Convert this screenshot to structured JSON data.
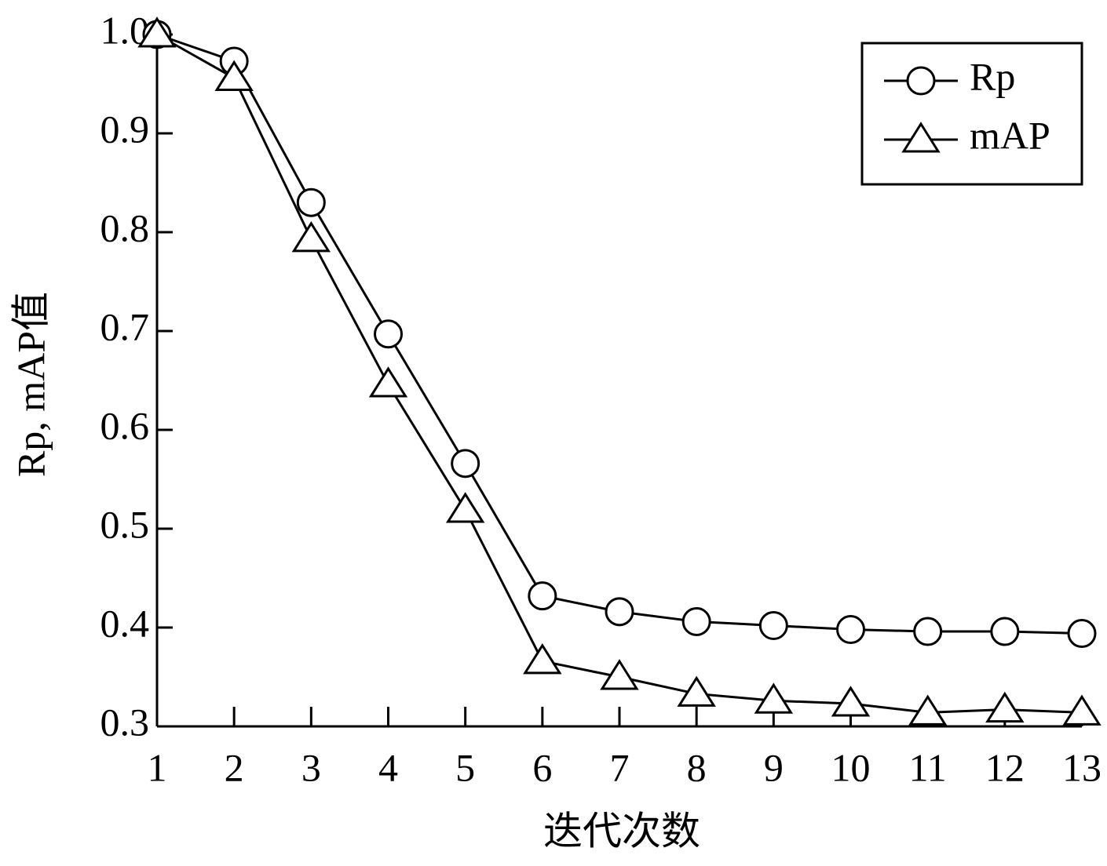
{
  "chart_data": {
    "type": "line",
    "xlabel": "迭代次数",
    "ylabel": "Rp, mAP值",
    "x": [
      1,
      2,
      3,
      4,
      5,
      6,
      7,
      8,
      9,
      10,
      11,
      12,
      13
    ],
    "series": [
      {
        "name": "Rp",
        "color": "#000000",
        "marker": "circle",
        "values": [
          1.0,
          0.973,
          0.83,
          0.697,
          0.566,
          0.432,
          0.416,
          0.406,
          0.402,
          0.398,
          0.396,
          0.396,
          0.394
        ]
      },
      {
        "name": "mAP",
        "color": "#000000",
        "marker": "triangle",
        "values": [
          1.0,
          0.956,
          0.793,
          0.646,
          0.519,
          0.366,
          0.35,
          0.333,
          0.326,
          0.323,
          0.314,
          0.317,
          0.314
        ]
      }
    ],
    "xlim": [
      1,
      13
    ],
    "xticks": [
      1,
      2,
      3,
      4,
      5,
      6,
      7,
      8,
      9,
      10,
      11,
      12,
      13
    ],
    "ylim": [
      0.3,
      1.0
    ],
    "yticks": [
      0.3,
      0.4,
      0.5,
      0.6,
      0.7,
      0.8,
      0.9,
      {
        "value": 1.0,
        "label": "1.0"
      }
    ],
    "grid": false,
    "legend": "upper right"
  }
}
